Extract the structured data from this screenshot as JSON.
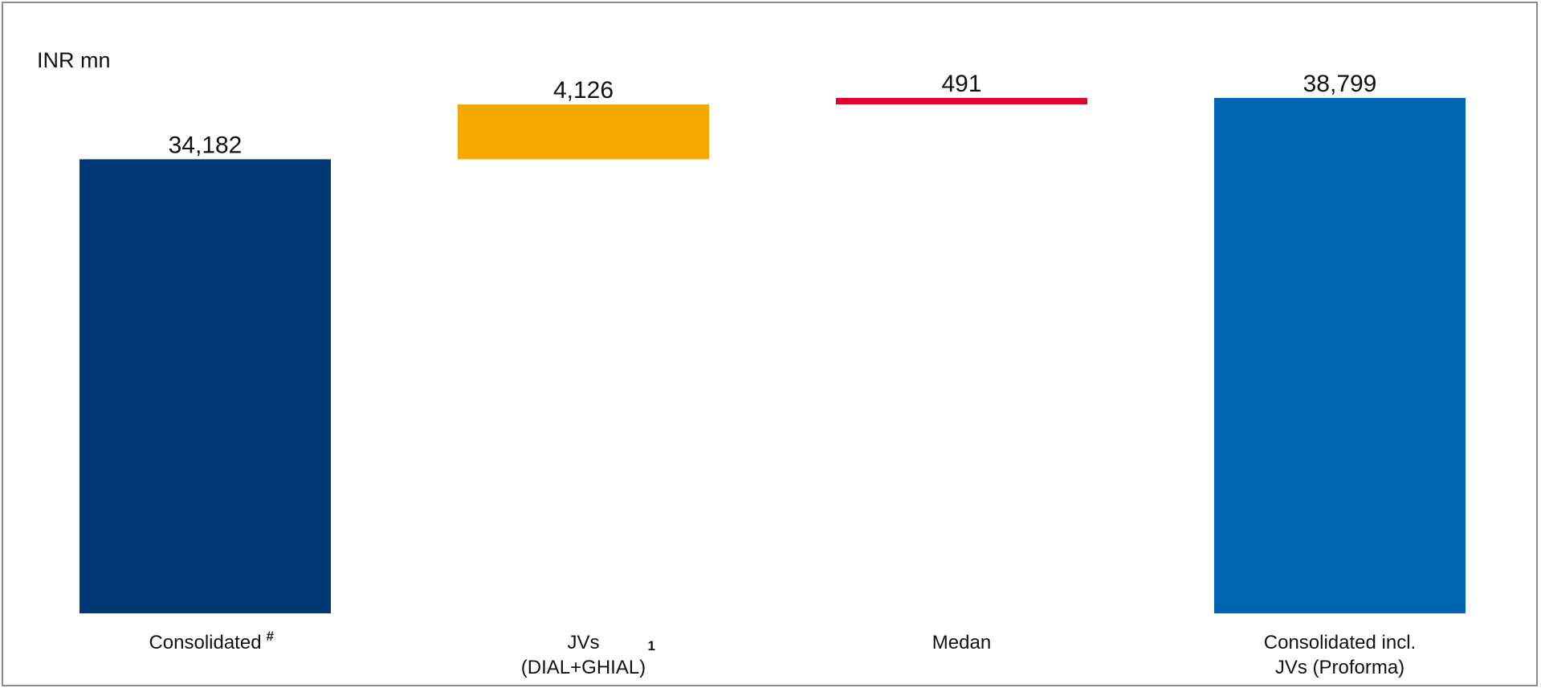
{
  "chart_data": {
    "type": "bar",
    "subtype": "waterfall",
    "unit_label": "INR mn",
    "categories": [
      {
        "lines": [
          "Consolidated"
        ],
        "superscript": "#"
      },
      {
        "lines": [
          "JVs",
          "(DIAL+GHIAL)"
        ],
        "superscript": "1"
      },
      {
        "lines": [
          "Medan"
        ],
        "superscript": ""
      },
      {
        "lines": [
          "Consolidated incl.",
          "JVs (Proforma)"
        ],
        "superscript": ""
      }
    ],
    "values": [
      34182,
      4126,
      491,
      38799
    ],
    "value_labels": [
      "34,182",
      "4,126",
      "491",
      "38,799"
    ],
    "bar_kinds": [
      "total",
      "increment",
      "increment",
      "total"
    ],
    "colors": [
      "#003876",
      "#f5a800",
      "#e4002b",
      "#0066b3"
    ],
    "ylim": [
      0,
      38799
    ],
    "grid": false,
    "legend": "none"
  }
}
